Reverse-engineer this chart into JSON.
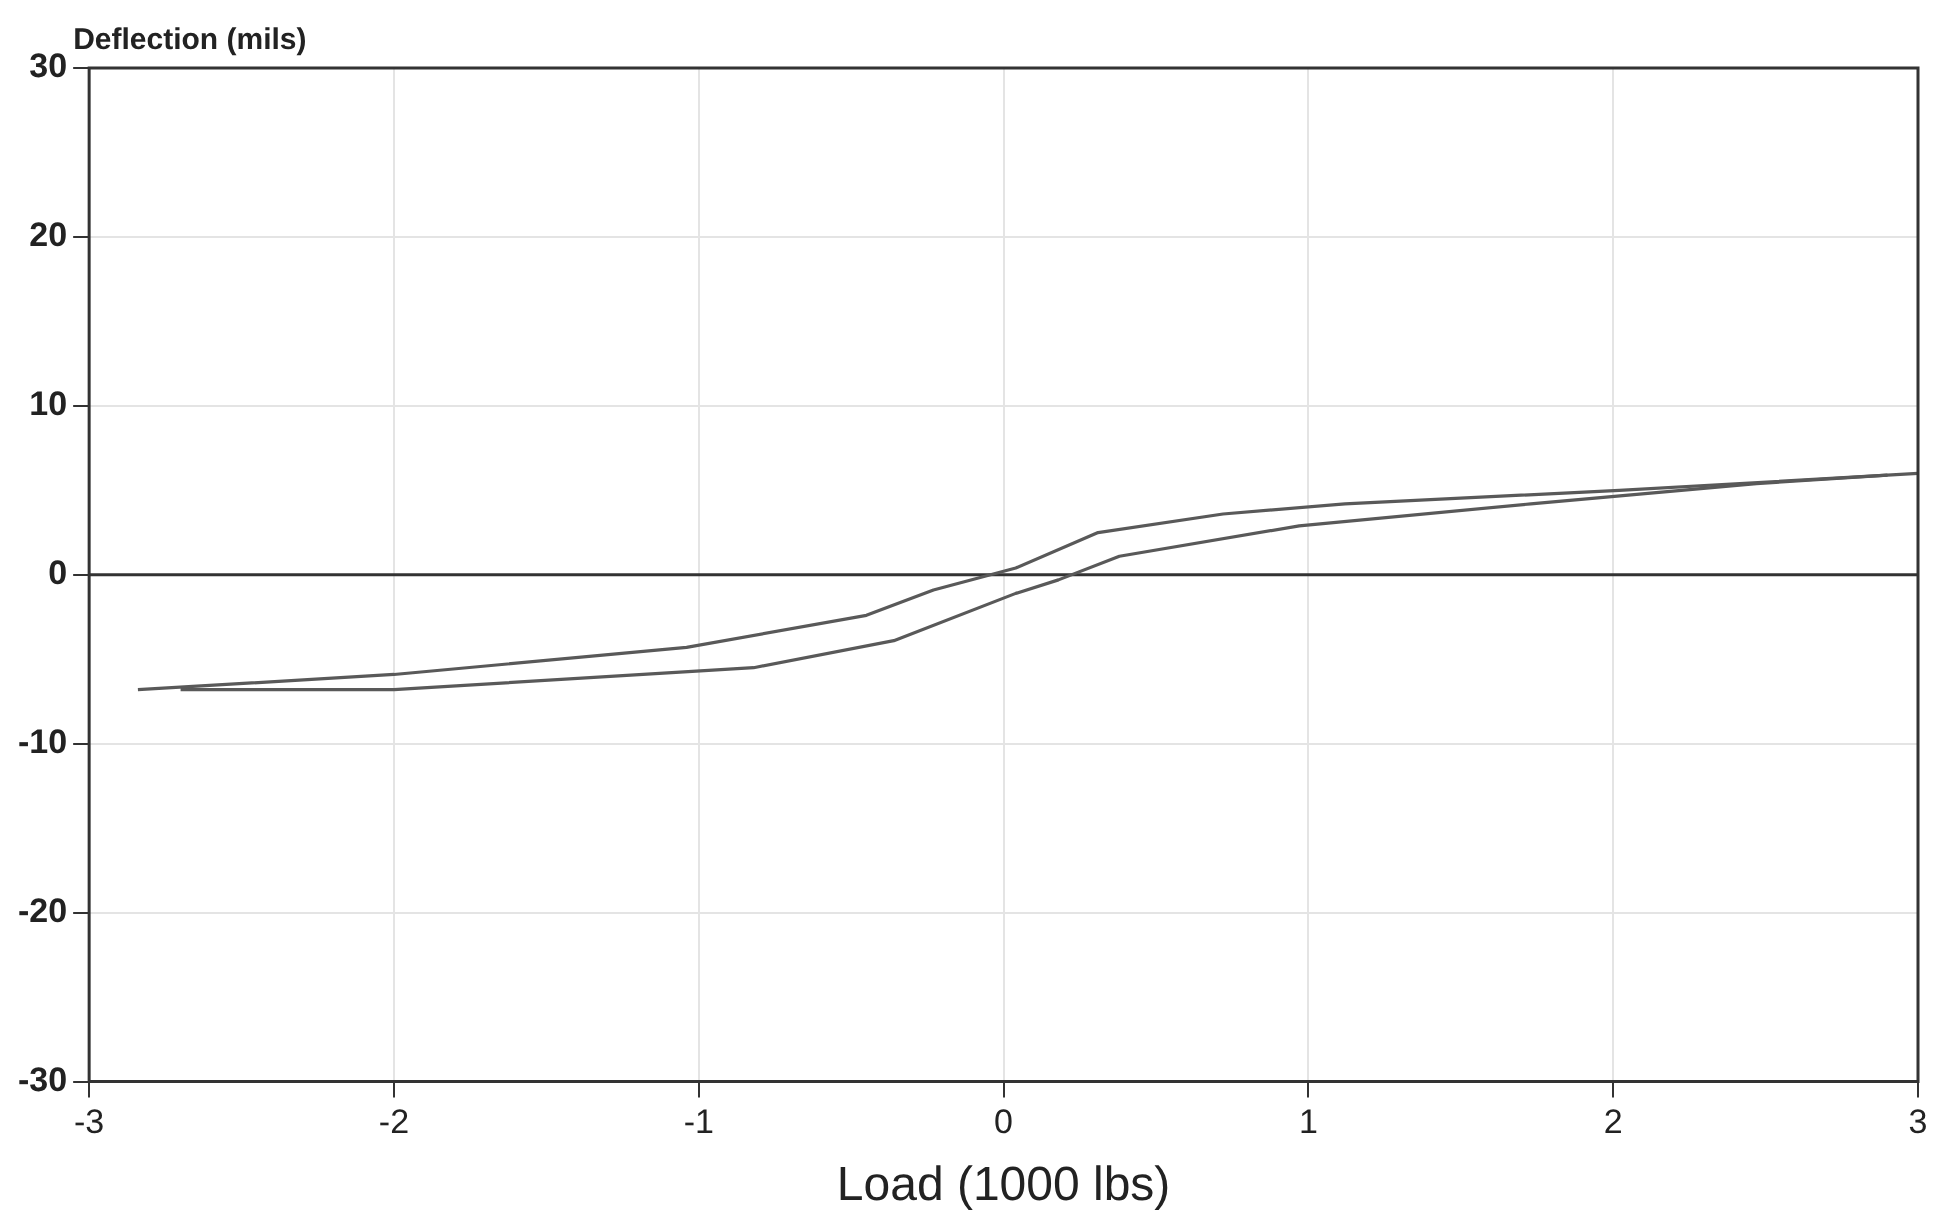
{
  "chart_data": {
    "type": "line",
    "xlabel": "Load (1000 lbs)",
    "ylabel": "Deflection (mils)",
    "xlim": [
      -3,
      3
    ],
    "xticks": [
      -3,
      -2,
      -1,
      0,
      1,
      2,
      3
    ],
    "ylim": [
      -30,
      30
    ],
    "yticks": [
      -30,
      -20,
      -10,
      0,
      10,
      20,
      30
    ],
    "grid": true,
    "marker": "none",
    "line_style": "solid",
    "series": [
      {
        "color": "#595959",
        "x": [
          -2.84,
          -2.0,
          -1.04,
          -0.45,
          -0.23,
          0.04,
          0.31,
          0.72,
          1.12,
          2.02,
          3.0
        ],
        "values": [
          -6.8,
          -5.9,
          -4.3,
          -2.4,
          -0.9,
          0.4,
          2.5,
          3.6,
          4.2,
          5.0,
          6.0
        ]
      },
      {
        "color": "#595959",
        "x": [
          -2.7,
          -2.0,
          -0.82,
          -0.36,
          0.04,
          0.18,
          0.38,
          0.97,
          1.73,
          2.47,
          2.9
        ],
        "values": [
          -6.8,
          -6.8,
          -5.5,
          -3.9,
          -1.1,
          -0.3,
          1.1,
          2.9,
          4.2,
          5.4,
          5.9
        ]
      }
    ],
    "ref_lines": [
      {
        "axis": "y",
        "value": 0,
        "color": "#333333"
      }
    ]
  }
}
